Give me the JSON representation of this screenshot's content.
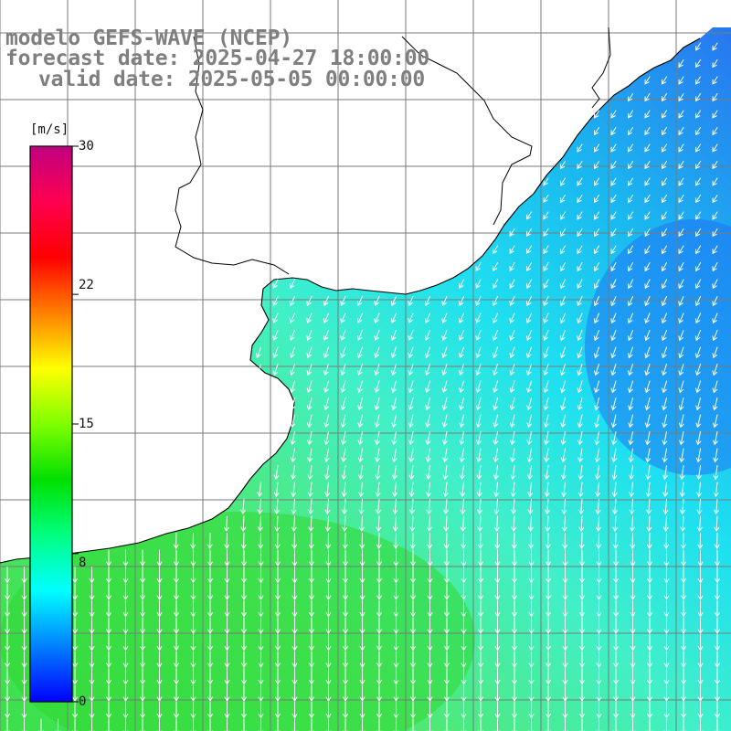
{
  "title": {
    "line1": "modelo GEFS-WAVE (NCEP)",
    "line2": "forecast date: 2025-04-27 18:00:00",
    "line3": "valid date: 2025-05-05 00:00:00"
  },
  "colorbar": {
    "unit": "[m/s]",
    "ticks": [
      "30",
      "22",
      "15",
      "8",
      "0"
    ],
    "tick_values": [
      30,
      22,
      15,
      8,
      0
    ],
    "min": 0,
    "max": 30,
    "colors": [
      "#0000ff",
      "#0080ff",
      "#00ffff",
      "#00ff80",
      "#00e000",
      "#80ff00",
      "#ffff00",
      "#ff8000",
      "#ff0000",
      "#ff0050",
      "#c00080"
    ]
  },
  "map": {
    "variable": "wind speed with direction arrows",
    "land_color": "#ffffff",
    "coast_color": "#000000",
    "grid_color": "#808080",
    "arrow_color": "#ffffff",
    "dominant_flow": "south-southwest"
  }
}
